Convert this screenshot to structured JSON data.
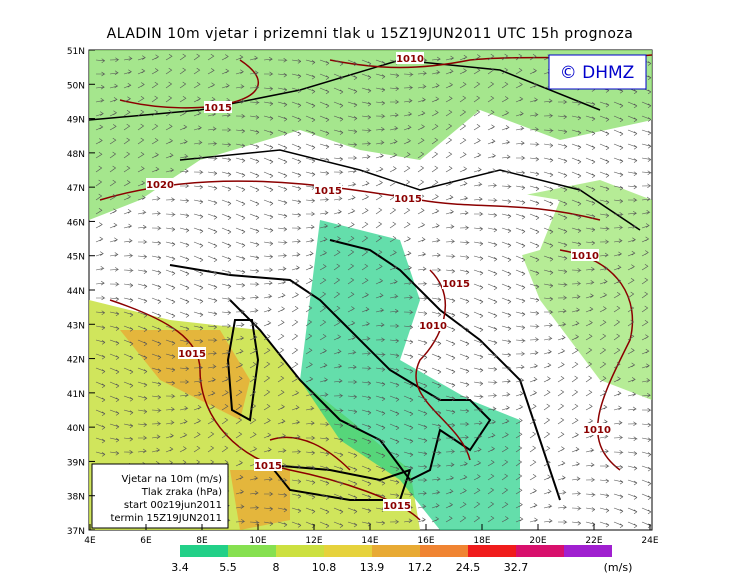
{
  "title": "ALADIN 10m vjetar i prizemni tlak u 15Z19JUN2011 UTC 15h prognoza",
  "logo": "© DHMZ",
  "lat_labels": [
    "51N",
    "50N",
    "49N",
    "48N",
    "47N",
    "46N",
    "45N",
    "44N",
    "43N",
    "42N",
    "41N",
    "40N",
    "39N",
    "38N",
    "37N"
  ],
  "lon_labels": [
    "4E",
    "6E",
    "8E",
    "10E",
    "12E",
    "14E",
    "16E",
    "18E",
    "20E",
    "22E",
    "24E"
  ],
  "isobar_labels": [
    "1010",
    "1015",
    "1020",
    "1015",
    "1015",
    "1010",
    "1015",
    "1010",
    "1015",
    "1010",
    "1015",
    "1015"
  ],
  "legend_box": [
    "Vjetar na 10m (m/s)",
    "Tlak zraka (hPa)",
    "start 00z19jun2011",
    "termin 15Z19JUN2011"
  ],
  "colorbar": {
    "labels": [
      3.4,
      5.5,
      8,
      10.8,
      13.9,
      17.2,
      24.5,
      32.7
    ],
    "unit": "(m/s)",
    "colors": [
      "#22d088",
      "#86e050",
      "#cce040",
      "#e6d23c",
      "#e8aa34",
      "#f08432",
      "#f01c1c",
      "#d8106c",
      "#a020d0"
    ]
  }
}
